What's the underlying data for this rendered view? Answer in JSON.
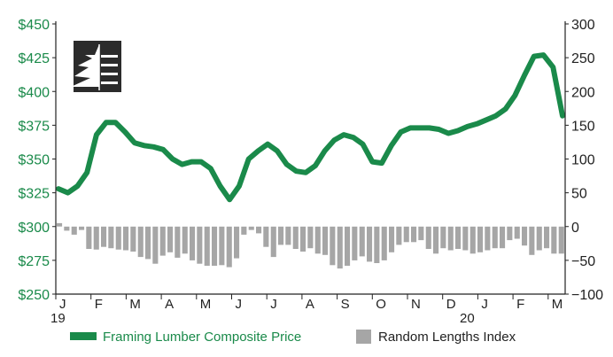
{
  "chart_data": {
    "type": "line",
    "left_axis": {
      "ticks": [
        "$450",
        "$425",
        "$400",
        "$375",
        "$350",
        "$325",
        "$300",
        "$275",
        "$250"
      ],
      "ylim": [
        250,
        450
      ]
    },
    "right_axis": {
      "ticks": [
        "300",
        "250",
        "200",
        "150",
        "100",
        "50",
        "0",
        "−50",
        "−100"
      ],
      "ylim": [
        -100,
        300
      ]
    },
    "x_ticks": [
      "J",
      "F",
      "M",
      "A",
      "M",
      "J",
      "J",
      "A",
      "S",
      "O",
      "N",
      "D",
      "J",
      "F",
      "M"
    ],
    "year_labels": [
      "19",
      "20"
    ],
    "grid": false,
    "legend_position": "bottom",
    "colors": {
      "price": "#1a8a4a",
      "index": "#a6a6a6",
      "axis": "#222222"
    },
    "logo": "lumber-tree-logo",
    "series": [
      {
        "name": "Framing Lumber Composite Price",
        "axis": "left",
        "kind": "line",
        "values": [
          328,
          325,
          330,
          340,
          368,
          377,
          377,
          370,
          362,
          360,
          359,
          357,
          350,
          346,
          348,
          348,
          343,
          330,
          320,
          330,
          350,
          356,
          361,
          356,
          346,
          341,
          340,
          345,
          356,
          364,
          368,
          366,
          361,
          348,
          347,
          360,
          370,
          373,
          373,
          373,
          372,
          369,
          371,
          374,
          376,
          379,
          382,
          387,
          397,
          412,
          426,
          427,
          418,
          382
        ]
      },
      {
        "name": "Random Lengths Index",
        "axis": "right",
        "kind": "bar",
        "values": [
          5,
          -6,
          -12,
          -5,
          -33,
          -34,
          -30,
          -32,
          -34,
          -35,
          -37,
          -45,
          -48,
          -55,
          -43,
          -38,
          -46,
          -40,
          -50,
          -55,
          -58,
          -58,
          -57,
          -60,
          -47,
          -12,
          -5,
          -10,
          -30,
          -45,
          -27,
          -27,
          -33,
          -37,
          -32,
          -40,
          -42,
          -57,
          -62,
          -58,
          -50,
          -44,
          -52,
          -54,
          -50,
          -38,
          -27,
          -23,
          -23,
          -20,
          -33,
          -40,
          -32,
          -35,
          -33,
          -35,
          -40,
          -38,
          -35,
          -32,
          -32,
          -20,
          -18,
          -28,
          -42,
          -35,
          -32,
          -40,
          -40
        ]
      }
    ]
  }
}
